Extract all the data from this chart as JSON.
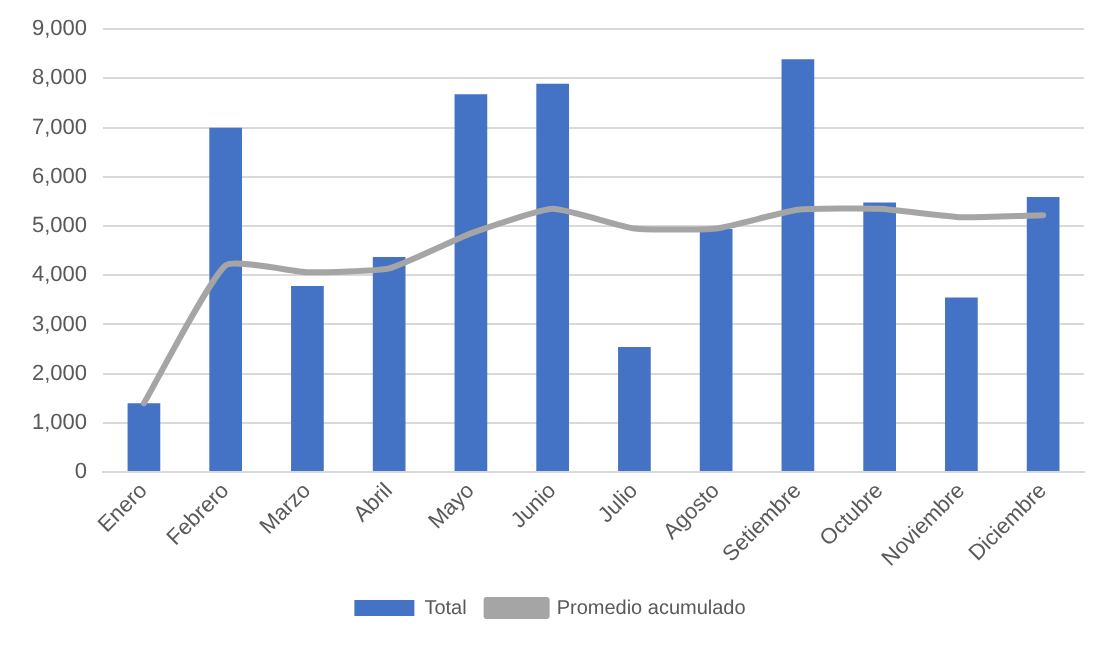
{
  "chart_data": {
    "type": "bar",
    "categories": [
      "Enero",
      "Febrero",
      "Marzo",
      "Abril",
      "Mayo",
      "Junio",
      "Julio",
      "Agosto",
      "Setiembre",
      "Octubre",
      "Noviembre",
      "Diciembre"
    ],
    "series": [
      {
        "name": "Total",
        "color": "#4472c4",
        "values": [
          1400,
          7000,
          3780,
          4370,
          7680,
          7890,
          2540,
          4940,
          8390,
          5480,
          3550,
          5590
        ]
      },
      {
        "name": "Promedio acumulado",
        "type": "line",
        "color": "#a5a5a5",
        "values": [
          1400,
          4200,
          4060,
          4140,
          4850,
          5350,
          4950,
          4950,
          5330,
          5350,
          5180,
          5220
        ]
      }
    ],
    "ylim": [
      0,
      9000
    ],
    "yticks": [
      0,
      {
        "value": 1000,
        "label": "1,000"
      },
      {
        "value": 2000,
        "label": "2,000"
      },
      {
        "value": 3000,
        "label": "3,000"
      },
      {
        "value": 4000,
        "label": "4,000"
      },
      {
        "value": 5000,
        "label": "5,000"
      },
      {
        "value": 6000,
        "label": "6,000"
      },
      {
        "value": 7000,
        "label": "7,000"
      },
      {
        "value": 8000,
        "label": "8,000"
      },
      {
        "value": 9000,
        "label": "9,000"
      }
    ],
    "grid": "y",
    "legend": "bottom",
    "marker": "none"
  }
}
